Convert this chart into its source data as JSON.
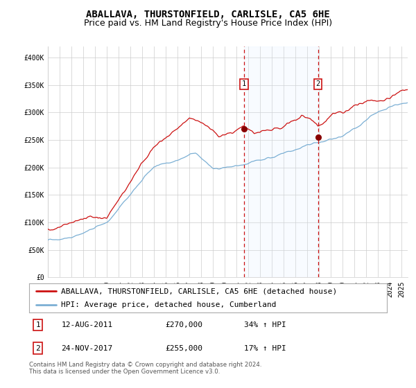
{
  "title": "ABALLAVA, THURSTONFIELD, CARLISLE, CA5 6HE",
  "subtitle": "Price paid vs. HM Land Registry's House Price Index (HPI)",
  "legend_line1": "ABALLAVA, THURSTONFIELD, CARLISLE, CA5 6HE (detached house)",
  "legend_line2": "HPI: Average price, detached house, Cumberland",
  "annotation1_date": "12-AUG-2011",
  "annotation1_price": 270000,
  "annotation1_price_str": "£270,000",
  "annotation1_pct": "34% ↑ HPI",
  "annotation1_year": 2011.62,
  "annotation2_date": "24-NOV-2017",
  "annotation2_price": 255000,
  "annotation2_price_str": "£255,000",
  "annotation2_pct": "17% ↑ HPI",
  "annotation2_year": 2017.9,
  "ylabel_ticks": [
    "£0",
    "£50K",
    "£100K",
    "£150K",
    "£200K",
    "£250K",
    "£300K",
    "£350K",
    "£400K"
  ],
  "ytick_vals": [
    0,
    50000,
    100000,
    150000,
    200000,
    250000,
    300000,
    350000,
    400000
  ],
  "xlim": [
    1995,
    2025.5
  ],
  "ylim": [
    0,
    420000
  ],
  "hpi_color": "#7bafd4",
  "price_color": "#cc1111",
  "shade_color": "#ddeeff",
  "vline_color": "#cc1111",
  "dot_color": "#880000",
  "grid_color": "#cccccc",
  "bg_color": "#ffffff",
  "footnote1": "Contains HM Land Registry data © Crown copyright and database right 2024.",
  "footnote2": "This data is licensed under the Open Government Licence v3.0.",
  "title_fontsize": 10,
  "subtitle_fontsize": 9,
  "tick_fontsize": 7,
  "legend_fontsize": 8,
  "annot_fontsize": 8
}
